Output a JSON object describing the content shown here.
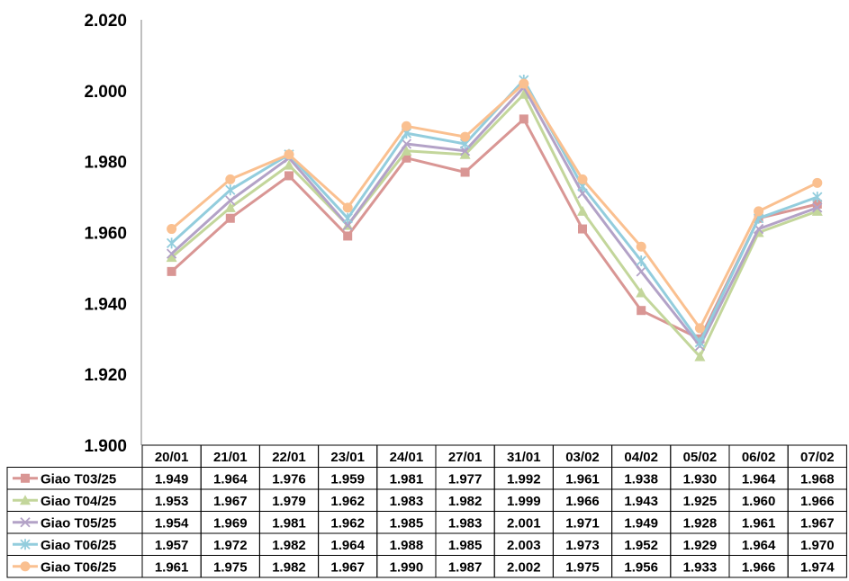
{
  "chart_data": {
    "type": "line",
    "title": "",
    "xlabel": "",
    "ylabel": "",
    "ylim": [
      1.9,
      2.02
    ],
    "yticks": [
      "1.900",
      "1.920",
      "1.940",
      "1.960",
      "1.980",
      "2.000",
      "2.020"
    ],
    "ytick_values": [
      1.9,
      1.92,
      1.94,
      1.96,
      1.98,
      2.0,
      2.02
    ],
    "grid": false,
    "legend": "data-table-bottom",
    "categories": [
      "20/01",
      "21/01",
      "22/01",
      "23/01",
      "24/01",
      "27/01",
      "31/01",
      "03/02",
      "04/02",
      "05/02",
      "06/02",
      "07/02"
    ],
    "series": [
      {
        "name": "Giao T03/25",
        "marker": "square",
        "color": "#d99694",
        "values": [
          1.949,
          1.964,
          1.976,
          1.959,
          1.981,
          1.977,
          1.992,
          1.961,
          1.938,
          1.93,
          1.964,
          1.968
        ],
        "labels": [
          "1.949",
          "1.964",
          "1.976",
          "1.959",
          "1.981",
          "1.977",
          "1.992",
          "1.961",
          "1.938",
          "1.930",
          "1.964",
          "1.968"
        ]
      },
      {
        "name": "Giao T04/25",
        "marker": "triangle",
        "color": "#c3d69b",
        "values": [
          1.953,
          1.967,
          1.979,
          1.962,
          1.983,
          1.982,
          1.999,
          1.966,
          1.943,
          1.925,
          1.96,
          1.966
        ],
        "labels": [
          "1.953",
          "1.967",
          "1.979",
          "1.962",
          "1.983",
          "1.982",
          "1.999",
          "1.966",
          "1.943",
          "1.925",
          "1.960",
          "1.966"
        ]
      },
      {
        "name": "Giao T05/25",
        "marker": "x",
        "color": "#b3a2c7",
        "values": [
          1.954,
          1.969,
          1.981,
          1.962,
          1.985,
          1.983,
          2.001,
          1.971,
          1.949,
          1.928,
          1.961,
          1.967
        ],
        "labels": [
          "1.954",
          "1.969",
          "1.981",
          "1.962",
          "1.985",
          "1.983",
          "2.001",
          "1.971",
          "1.949",
          "1.928",
          "1.961",
          "1.967"
        ]
      },
      {
        "name": "Giao T06/25",
        "marker": "star",
        "color": "#93cddd",
        "values": [
          1.957,
          1.972,
          1.982,
          1.964,
          1.988,
          1.985,
          2.003,
          1.973,
          1.952,
          1.929,
          1.964,
          1.97
        ],
        "labels": [
          "1.957",
          "1.972",
          "1.982",
          "1.964",
          "1.988",
          "1.985",
          "2.003",
          "1.973",
          "1.952",
          "1.929",
          "1.964",
          "1.970"
        ]
      },
      {
        "name": "Giao T06/25",
        "marker": "circle",
        "color": "#fac090",
        "values": [
          1.961,
          1.975,
          1.982,
          1.967,
          1.99,
          1.987,
          2.002,
          1.975,
          1.956,
          1.933,
          1.966,
          1.974
        ],
        "labels": [
          "1.961",
          "1.975",
          "1.982",
          "1.967",
          "1.990",
          "1.987",
          "2.002",
          "1.975",
          "1.956",
          "1.933",
          "1.966",
          "1.974"
        ]
      }
    ]
  }
}
